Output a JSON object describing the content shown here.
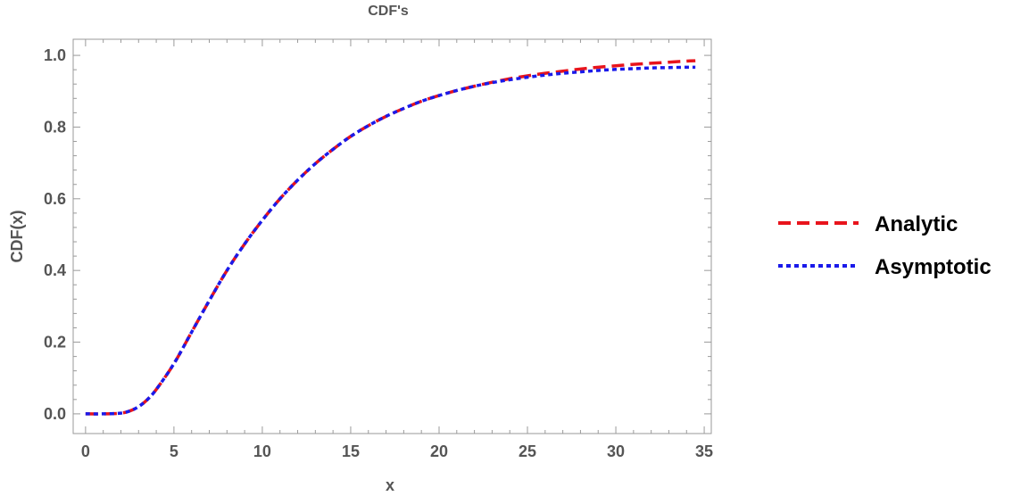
{
  "chart_data": {
    "type": "line",
    "title": "CDF's",
    "xlabel": "x",
    "ylabel": "CDF(x)",
    "xlim": [
      -0.7,
      35.4
    ],
    "ylim": [
      -0.055,
      1.045
    ],
    "xticks": [
      0,
      5,
      10,
      15,
      20,
      25,
      30,
      35
    ],
    "xtick_labels": [
      "0",
      "5",
      "10",
      "15",
      "20",
      "25",
      "30",
      "35"
    ],
    "yticks": [
      0.0,
      0.2,
      0.4,
      0.6,
      0.8,
      1.0
    ],
    "ytick_labels": [
      "0.0",
      "0.2",
      "0.4",
      "0.6",
      "0.8",
      "1.0"
    ],
    "grid": false,
    "legend_position": "right",
    "series": [
      {
        "name": "Analytic",
        "color": "#e8141c",
        "style": "dashed",
        "x": [
          0,
          1,
          2,
          2.5,
          3,
          3.5,
          4,
          5,
          6,
          7,
          8,
          9,
          10,
          11,
          12,
          13,
          14,
          15,
          16,
          17,
          18,
          19,
          20,
          21,
          22,
          23,
          24,
          25,
          26,
          27,
          28,
          29,
          30,
          31,
          32,
          33,
          34,
          34.5
        ],
        "y": [
          0,
          0,
          0.002,
          0.008,
          0.02,
          0.04,
          0.068,
          0.14,
          0.228,
          0.316,
          0.4,
          0.474,
          0.54,
          0.6,
          0.652,
          0.698,
          0.738,
          0.774,
          0.804,
          0.83,
          0.852,
          0.872,
          0.888,
          0.902,
          0.914,
          0.925,
          0.935,
          0.943,
          0.95,
          0.956,
          0.962,
          0.967,
          0.971,
          0.975,
          0.978,
          0.981,
          0.984,
          0.985
        ]
      },
      {
        "name": "Asymptotic",
        "color": "#1a1aea",
        "style": "dotted",
        "x": [
          0,
          1,
          2,
          2.5,
          3,
          3.5,
          4,
          5,
          6,
          7,
          8,
          9,
          10,
          11,
          12,
          13,
          14,
          15,
          16,
          17,
          18,
          19,
          20,
          21,
          22,
          23,
          24,
          25,
          26,
          27,
          28,
          29,
          30,
          31,
          32,
          33,
          34,
          34.5
        ],
        "y": [
          0,
          0,
          0.002,
          0.008,
          0.02,
          0.04,
          0.068,
          0.14,
          0.228,
          0.316,
          0.4,
          0.474,
          0.54,
          0.6,
          0.652,
          0.698,
          0.738,
          0.774,
          0.804,
          0.83,
          0.852,
          0.872,
          0.888,
          0.902,
          0.914,
          0.924,
          0.932,
          0.939,
          0.945,
          0.95,
          0.954,
          0.958,
          0.961,
          0.963,
          0.965,
          0.966,
          0.967,
          0.967
        ]
      }
    ]
  }
}
